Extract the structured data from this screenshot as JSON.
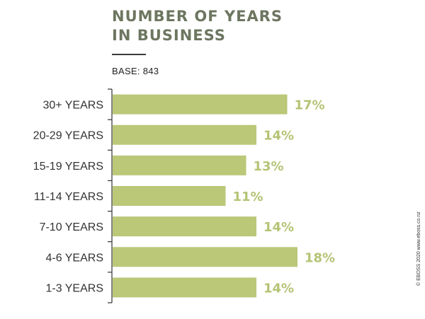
{
  "header": {
    "title_line1": "NUMBER OF YEARS",
    "title_line2": "IN BUSINESS",
    "base": "BASE: 843"
  },
  "credit": "© EBOSS 2020 www.eboss.co.nz",
  "colors": {
    "bar": "#bac878",
    "value_label": "#b4c474",
    "category_label": "#333333",
    "axis": "#333333"
  },
  "chart_data": {
    "type": "bar",
    "orientation": "horizontal",
    "title": "NUMBER OF YEARS IN BUSINESS",
    "categories": [
      "30+ YEARS",
      "20-29 YEARS",
      "15-19 YEARS",
      "11-14 YEARS",
      "7-10 YEARS",
      "4-6 YEARS",
      "1-3 YEARS"
    ],
    "values": [
      17,
      14,
      13,
      11,
      14,
      18,
      14
    ],
    "value_labels": [
      "17%",
      "14%",
      "13%",
      "11%",
      "14%",
      "18%",
      "14%"
    ],
    "unit": "%",
    "xlim": [
      0,
      20
    ],
    "grid": false,
    "legend": "none"
  }
}
